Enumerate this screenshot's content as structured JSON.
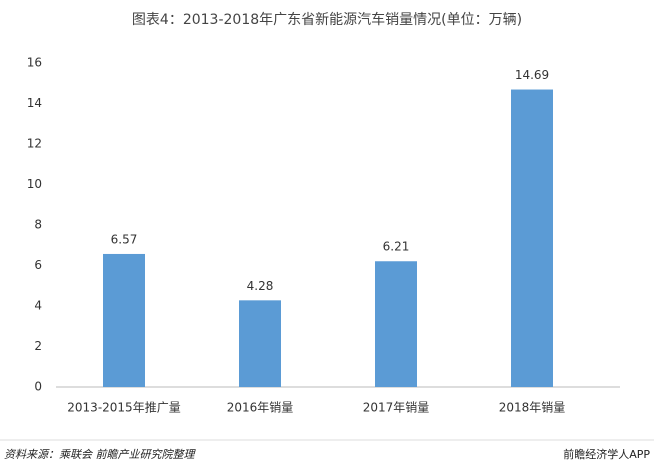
{
  "chart_data": {
    "type": "bar",
    "title": "图表4：2013-2018年广东省新能源汽车销量情况(单位：万辆)",
    "categories": [
      "2013-2015年推广量",
      "2016年销量",
      "2017年销量",
      "2018年销量"
    ],
    "values": [
      6.57,
      4.28,
      6.21,
      14.69
    ],
    "color": "#5b9bd5",
    "ylim": [
      0,
      16
    ],
    "yticks": [
      0,
      2,
      4,
      6,
      8,
      10,
      12,
      14,
      16
    ],
    "grid": false,
    "source": "资料来源：乘联会 前瞻产业研究院整理",
    "app_label": "前瞻经济学人APP"
  }
}
